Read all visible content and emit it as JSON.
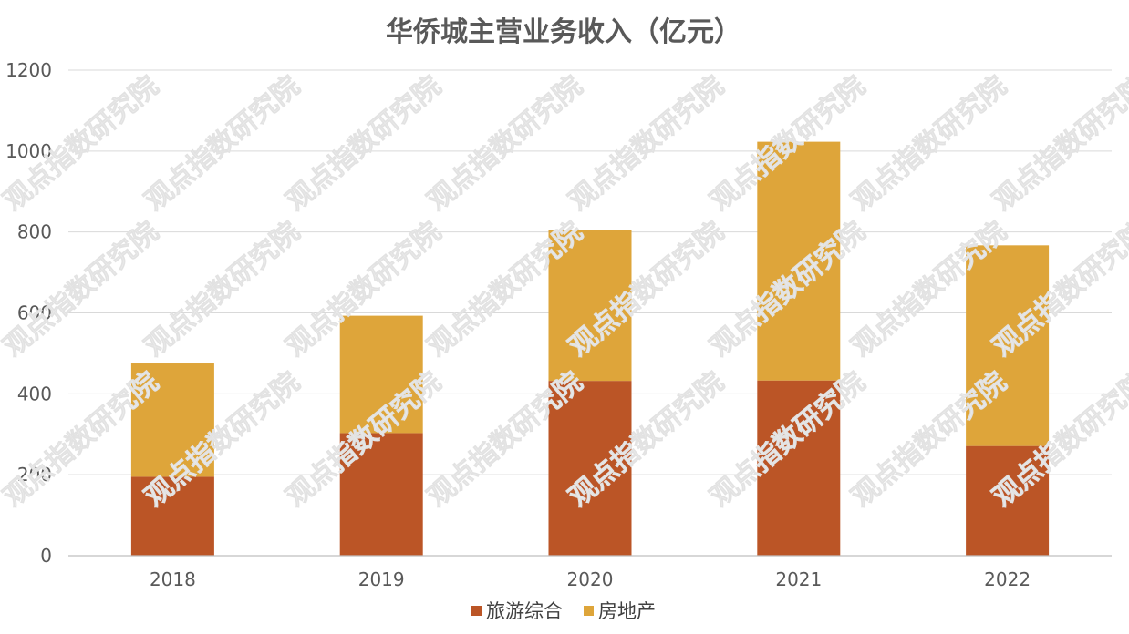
{
  "chart_data": {
    "type": "bar",
    "stacked": true,
    "title": "华侨城主营业务收入（亿元）",
    "xlabel": "",
    "ylabel": "",
    "categories": [
      "2018",
      "2019",
      "2020",
      "2021",
      "2022"
    ],
    "series": [
      {
        "name": "旅游综合",
        "color": "#BB5526",
        "values": [
          195,
          303,
          432,
          433,
          271
        ]
      },
      {
        "name": "房地产",
        "color": "#DEA53A",
        "values": [
          280,
          290,
          372,
          590,
          496
        ]
      }
    ],
    "ylim": [
      0,
      1200
    ],
    "yticks": [
      "0",
      "200",
      "400",
      "600",
      "800",
      "1000",
      "1200"
    ],
    "grid": true,
    "legend": "bottom",
    "watermark": "观点指数研究院"
  }
}
